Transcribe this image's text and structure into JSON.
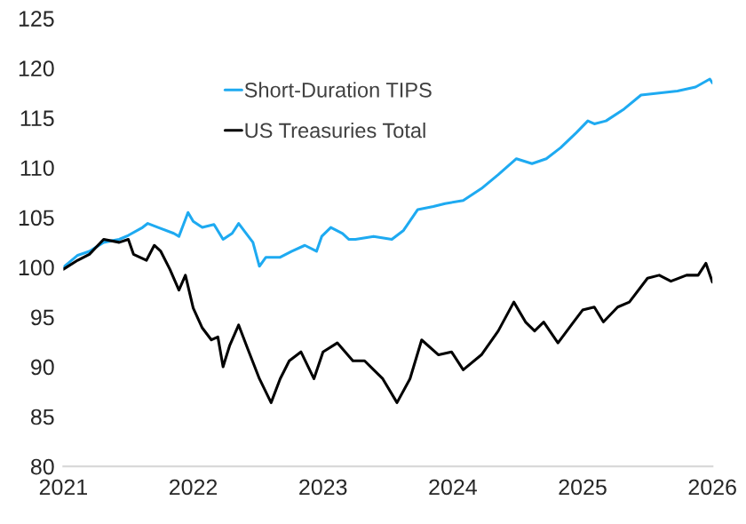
{
  "chart_data": {
    "type": "line",
    "xlim": [
      2021,
      2026
    ],
    "xticks": [
      2021,
      2022,
      2023,
      2024,
      2025,
      2026
    ],
    "ylim": [
      80,
      125
    ],
    "yticks": [
      80,
      85,
      90,
      95,
      100,
      105,
      110,
      115,
      120,
      125
    ],
    "grid": false,
    "legend": "top left",
    "marker": "none",
    "line_style": "solid",
    "series": [
      {
        "name": "Short-Duration TIPS",
        "color": "#1eaaf1",
        "x": [
          2021.0,
          2021.11,
          2021.2,
          2021.31,
          2021.43,
          2021.5,
          2021.61,
          2021.65,
          2021.73,
          2021.85,
          2021.89,
          2021.96,
          2022.0,
          2022.07,
          2022.16,
          2022.23,
          2022.3,
          2022.35,
          2022.39,
          2022.46,
          2022.51,
          2022.56,
          2022.67,
          2022.76,
          2022.86,
          2022.95,
          2022.99,
          2023.06,
          2023.15,
          2023.2,
          2023.25,
          2023.39,
          2023.53,
          2023.62,
          2023.73,
          2023.85,
          2023.94,
          2024.08,
          2024.22,
          2024.35,
          2024.49,
          2024.61,
          2024.72,
          2024.83,
          2024.95,
          2025.04,
          2025.09,
          2025.18,
          2025.32,
          2025.45,
          2025.59,
          2025.73,
          2025.87,
          2025.98,
          2026.0
        ],
        "values": [
          100,
          101.2,
          101.6,
          102.5,
          102.8,
          103.2,
          104,
          104.4,
          104,
          103.4,
          103.1,
          105.5,
          104.6,
          104,
          104.3,
          102.8,
          103.4,
          104.4,
          103.7,
          102.5,
          100.1,
          101,
          101,
          101.6,
          102.2,
          101.6,
          103.1,
          104,
          103.4,
          102.8,
          102.8,
          103.1,
          102.8,
          103.7,
          105.8,
          106.1,
          106.4,
          106.7,
          107.9,
          109.3,
          110.9,
          110.4,
          110.9,
          112,
          113.5,
          114.7,
          114.4,
          114.7,
          115.9,
          117.3,
          117.5,
          117.7,
          118.1,
          118.9,
          118.5
        ]
      },
      {
        "name": "US Treasuries Total",
        "color": "#000000",
        "x": [
          2021.0,
          2021.11,
          2021.2,
          2021.31,
          2021.43,
          2021.5,
          2021.54,
          2021.64,
          2021.7,
          2021.75,
          2021.82,
          2021.89,
          2021.94,
          2022.0,
          2022.07,
          2022.14,
          2022.19,
          2022.23,
          2022.28,
          2022.35,
          2022.42,
          2022.51,
          2022.6,
          2022.67,
          2022.74,
          2022.83,
          2022.93,
          2023.0,
          2023.11,
          2023.23,
          2023.32,
          2023.39,
          2023.46,
          2023.57,
          2023.67,
          2023.76,
          2023.89,
          2023.99,
          2024.08,
          2024.22,
          2024.35,
          2024.47,
          2024.56,
          2024.63,
          2024.7,
          2024.81,
          2024.93,
          2025.0,
          2025.09,
          2025.16,
          2025.27,
          2025.36,
          2025.5,
          2025.59,
          2025.68,
          2025.8,
          2025.89,
          2025.95,
          2026.0
        ],
        "values": [
          99.8,
          100.7,
          101.3,
          102.8,
          102.5,
          102.8,
          101.3,
          100.7,
          102.2,
          101.6,
          99.8,
          97.7,
          99.2,
          95.9,
          93.9,
          92.7,
          93,
          90,
          92.1,
          94.2,
          91.8,
          88.8,
          86.4,
          88.8,
          90.6,
          91.5,
          88.8,
          91.5,
          92.4,
          90.6,
          90.6,
          89.7,
          88.8,
          86.4,
          88.8,
          92.7,
          91.2,
          91.5,
          89.7,
          91.2,
          93.6,
          96.5,
          94.5,
          93.6,
          94.5,
          92.4,
          94.5,
          95.7,
          96,
          94.5,
          96,
          96.5,
          98.9,
          99.2,
          98.6,
          99.2,
          99.2,
          100.4,
          98.5
        ]
      }
    ]
  }
}
